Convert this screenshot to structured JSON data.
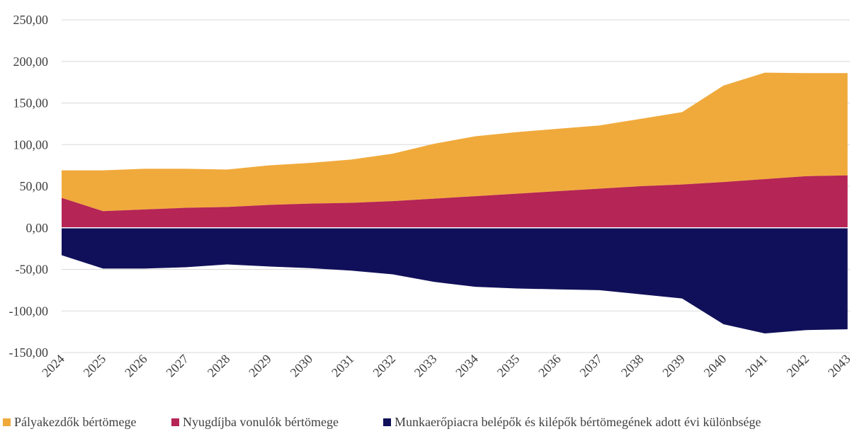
{
  "chart_data": {
    "type": "area",
    "stacking": "stacked",
    "x": [
      "2024",
      "2025",
      "2026",
      "2027",
      "2028",
      "2029",
      "2030",
      "2031",
      "2032",
      "2033",
      "2034",
      "2035",
      "2036",
      "2037",
      "2038",
      "2039",
      "2040",
      "2041",
      "2042",
      "2043"
    ],
    "x_tick_labels": [
      "2024",
      "2025",
      "2026",
      "2027",
      "2028",
      "2029",
      "2030",
      "2031",
      "2032",
      "2033",
      "2034",
      "2035",
      "2036",
      "2037",
      "2038",
      "2039",
      "2040",
      "2041",
      "2042",
      "2043"
    ],
    "ylim": [
      -150,
      250
    ],
    "y_ticks": [
      250,
      200,
      150,
      100,
      50,
      0,
      -50,
      -100,
      -150
    ],
    "y_tick_labels": [
      "250,00",
      "200,00",
      "150,00",
      "100,00",
      "50,00",
      "0,00",
      "-50,00",
      "-100,00",
      "-150,00"
    ],
    "grid": "horizontal",
    "legend_position": "bottom",
    "series": [
      {
        "name": "Nyugdíjba vonulók bértömege",
        "color": "#b52555",
        "values": [
          36,
          20,
          22,
          24,
          25,
          27.5,
          29,
          30,
          32,
          35,
          38,
          41,
          44,
          47,
          50,
          52,
          55,
          58.5,
          62,
          63
        ]
      },
      {
        "name": "Pályakezdők bértömege",
        "color": "#f0aa3c",
        "values": [
          33,
          49,
          49,
          47,
          45,
          47.5,
          49,
          52,
          57,
          66,
          72,
          74,
          75,
          76,
          81,
          87,
          116,
          128,
          124,
          123
        ]
      },
      {
        "name": "Munkaerőpiacra belépők és kilépők bértömegének adott évi különbsége",
        "color": "#10105a",
        "values": [
          -33,
          -49,
          -49,
          -47.5,
          -44,
          -46.5,
          -48.5,
          -51.5,
          -56,
          -65,
          -71,
          -73,
          -74,
          -75,
          -80,
          -85,
          -116,
          -127,
          -123,
          -122
        ]
      }
    ],
    "legend": [
      {
        "label": "Pályakezdők bértömege",
        "color": "#f0aa3c"
      },
      {
        "label": "Nyugdíjba vonulók bértömege",
        "color": "#b52555"
      },
      {
        "label": "Munkaerőpiacra belépők és kilépők bértömegének adott évi különbsége",
        "color": "#10105a"
      }
    ]
  }
}
